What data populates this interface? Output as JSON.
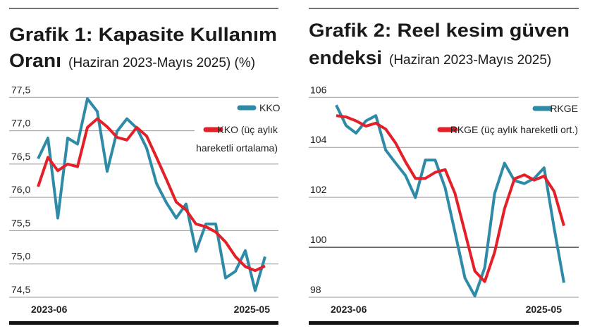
{
  "chart_data": [
    {
      "type": "line",
      "title_line1": "Grafik 1: Kapasite Kullanım",
      "title_line2_bold": "Oranı",
      "title_line2_rest": "(Haziran 2023-Mayıs 2025) (%)",
      "x_tick_labels": [
        "2023-06",
        "2025-05"
      ],
      "y_ticks": [
        "77,5",
        "77,0",
        "76,5",
        "76,0",
        "75,5",
        "75,0",
        "74,5"
      ],
      "y_tick_values": [
        77.5,
        77.0,
        76.5,
        76.0,
        75.5,
        75.0,
        74.5
      ],
      "ylim": [
        74.5,
        77.5
      ],
      "grid": true,
      "legend_placement": "top-right",
      "legend": {
        "series1": "KKO",
        "series2_line1": "KKO (üç aylık",
        "series2_line2": "hareketli ortalama)"
      },
      "x": [
        "2023-06",
        "2023-07",
        "2023-08",
        "2023-09",
        "2023-10",
        "2023-11",
        "2023-12",
        "2024-01",
        "2024-02",
        "2024-03",
        "2024-04",
        "2024-05",
        "2024-06",
        "2024-07",
        "2024-08",
        "2024-09",
        "2024-10",
        "2024-11",
        "2024-12",
        "2025-01",
        "2025-02",
        "2025-03",
        "2025-04",
        "2025-05"
      ],
      "series": [
        {
          "name": "KKO",
          "color": "#2e8ba8",
          "values": [
            76.58,
            76.89,
            75.69,
            76.89,
            76.8,
            77.48,
            77.29,
            76.39,
            76.99,
            77.18,
            77.04,
            76.74,
            76.21,
            75.92,
            75.69,
            75.9,
            75.19,
            75.6,
            75.6,
            74.79,
            74.89,
            75.2,
            74.6,
            75.11
          ]
        },
        {
          "name": "KKO (üç aylık hareketli ortalama)",
          "color": "#e41f28",
          "values": [
            76.16,
            76.6,
            76.4,
            76.5,
            76.46,
            77.05,
            77.18,
            77.06,
            76.9,
            76.86,
            77.05,
            76.92,
            76.6,
            76.27,
            75.93,
            75.81,
            75.6,
            75.56,
            75.48,
            75.33,
            75.11,
            74.96,
            74.9,
            74.97
          ]
        }
      ]
    },
    {
      "type": "line",
      "title_line1": "Grafik 2: Reel kesim güven",
      "title_line2_bold": "endeksi",
      "title_line2_rest": "(Haziran 2023-Mayıs 2025)",
      "x_tick_labels": [
        "2023-06",
        "2025-05"
      ],
      "y_ticks": [
        "106",
        "104",
        "102",
        "100",
        "98"
      ],
      "y_tick_values": [
        106,
        104,
        102,
        100,
        98
      ],
      "ylim": [
        98,
        106
      ],
      "reference_line": 100,
      "grid": true,
      "legend_placement": "top-right",
      "legend": {
        "series1": "RKGE",
        "series2": "RKGE (üç aylık hareketli ort.)"
      },
      "x": [
        "2023-06",
        "2023-07",
        "2023-08",
        "2023-09",
        "2023-10",
        "2023-11",
        "2023-12",
        "2024-01",
        "2024-02",
        "2024-03",
        "2024-04",
        "2024-05",
        "2024-06",
        "2024-07",
        "2024-08",
        "2024-09",
        "2024-10",
        "2024-11",
        "2024-12",
        "2025-01",
        "2025-02",
        "2025-03",
        "2025-04",
        "2025-05"
      ],
      "series": [
        {
          "name": "RKGE",
          "color": "#2e8ba8",
          "values": [
            105.69,
            104.87,
            104.57,
            105.06,
            105.27,
            103.89,
            103.37,
            102.87,
            101.99,
            103.49,
            103.49,
            102.38,
            100.6,
            98.77,
            98.05,
            99.19,
            102.15,
            103.37,
            102.67,
            102.55,
            102.76,
            103.18,
            100.79,
            98.58
          ]
        },
        {
          "name": "RKGE (üç aylık hareketli ort.)",
          "color": "#e41f28",
          "values": [
            105.27,
            105.22,
            105.06,
            104.85,
            104.97,
            104.73,
            104.17,
            103.42,
            102.76,
            102.76,
            103.0,
            103.11,
            102.15,
            100.6,
            99.05,
            98.63,
            99.8,
            101.54,
            102.74,
            102.9,
            102.69,
            102.85,
            102.24,
            100.86
          ]
        }
      ]
    }
  ]
}
